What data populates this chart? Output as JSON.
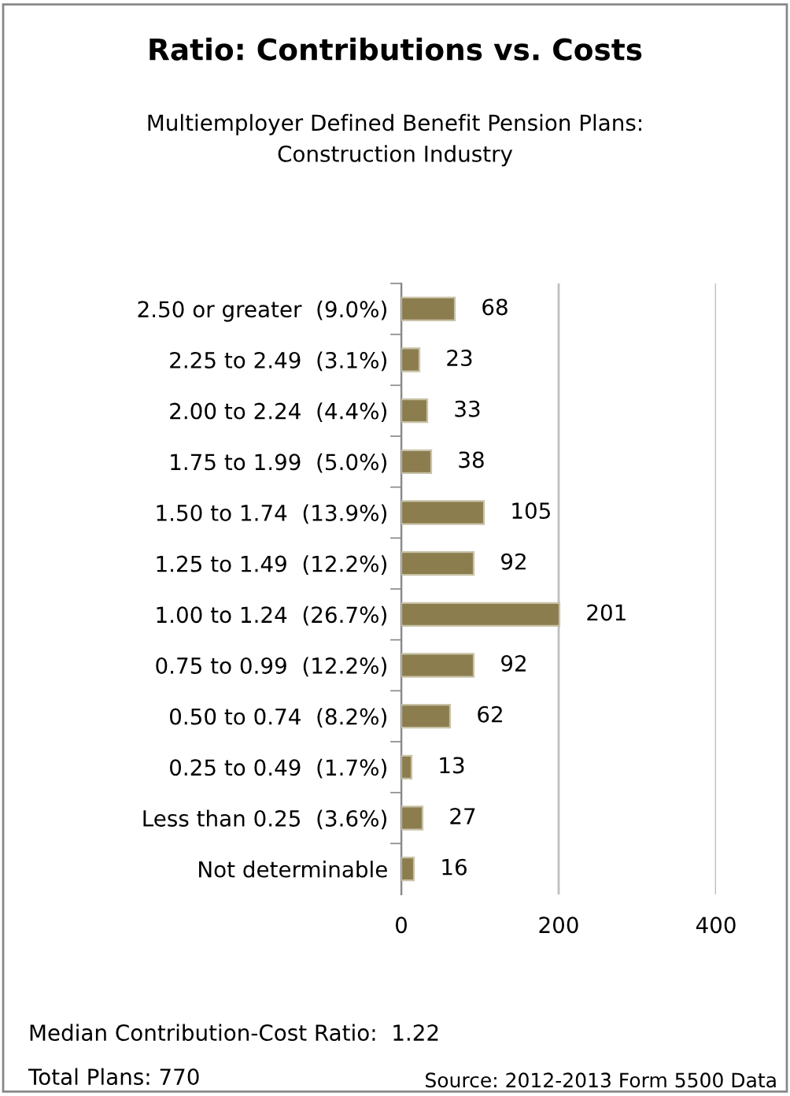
{
  "chart_data": {
    "type": "bar",
    "orientation": "horizontal",
    "title": "Ratio: Contributions vs. Costs",
    "subtitle": "Multiemployer Defined Benefit Pension Plans:\nConstruction Industry",
    "categories": [
      "2.50 or greater  (9.0%)",
      "2.25 to 2.49  (3.1%)",
      "2.00 to 2.24  (4.4%)",
      "1.75 to 1.99  (5.0%)",
      "1.50 to 1.74  (13.9%)",
      "1.25 to 1.49  (12.2%)",
      "1.00 to 1.24  (26.7%)",
      "0.75 to 0.99  (12.2%)",
      "0.50 to 0.74  (8.2%)",
      "0.25 to 0.49  (1.7%)",
      "Less than 0.25  (3.6%)",
      "Not determinable"
    ],
    "values": [
      68,
      23,
      33,
      38,
      105,
      92,
      201,
      92,
      62,
      13,
      27,
      16
    ],
    "color": "#8b7d4e",
    "xlim": [
      0,
      400
    ],
    "xticks": [
      0,
      200,
      400
    ],
    "grid": "x",
    "data_labels": true,
    "annotations": [
      "Median Contribution-Cost Ratio:  1.22",
      "Total Plans: 770",
      "Source: 2012-2013 Form 5500 Data"
    ]
  }
}
